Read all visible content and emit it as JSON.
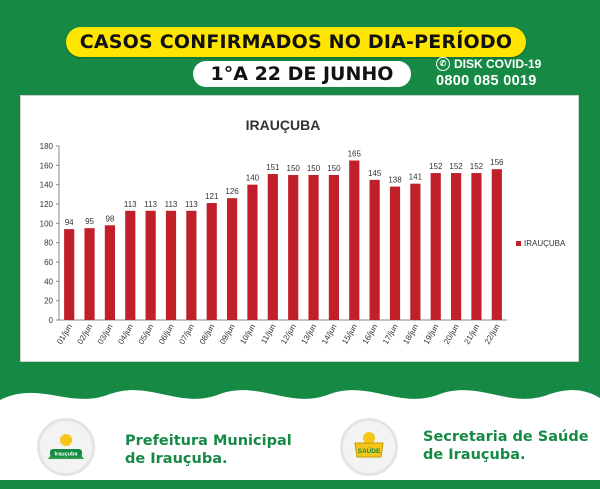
{
  "header": {
    "title": "CASOS CONFIRMADOS NO DIA-PERÍODO",
    "period": "1°A 22 DE JUNHO",
    "disk_label": "DISK COVID-19",
    "disk_phone": "0800 085 0019"
  },
  "footer": {
    "org_left_line1": "Prefeitura Municipal",
    "org_left_line2": "de Irauçuba.",
    "org_right_line1": "Secretaria de Saúde",
    "org_right_line2": "de Irauçuba.",
    "logo_left_text": "Irauçuba",
    "logo_right_text": "SAÚDE"
  },
  "colors": {
    "background": "#168a45",
    "banner": "#ffe500",
    "bar": "#c0202a"
  },
  "chart_data": {
    "type": "bar",
    "title": "IRAUÇUBA",
    "categories": [
      "01/jun",
      "02/jun",
      "03/jun",
      "04/jun",
      "05/jun",
      "06/jun",
      "07/jun",
      "08/jun",
      "09/jun",
      "10/jun",
      "11/jun",
      "12/jun",
      "13/jun",
      "14/jun",
      "15/jun",
      "16/jun",
      "17/jun",
      "18/jun",
      "19/jun",
      "20/jun",
      "21/jun",
      "22/jun"
    ],
    "series": [
      {
        "name": "IRAUÇUBA",
        "values": [
          94,
          95,
          98,
          113,
          113,
          113,
          113,
          121,
          126,
          140,
          151,
          150,
          150,
          150,
          165,
          145,
          138,
          141,
          152,
          152,
          152,
          156
        ]
      }
    ],
    "ylim": [
      0,
      180
    ],
    "yticks": [
      0,
      20,
      40,
      60,
      80,
      100,
      120,
      140,
      160,
      180
    ],
    "grid": false,
    "legend": "right"
  }
}
